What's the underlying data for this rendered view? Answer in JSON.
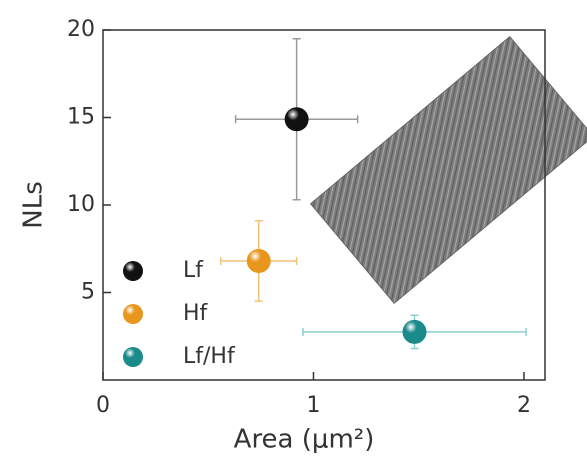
{
  "chart_data": {
    "type": "scatter",
    "x_label": "Area (μm²)",
    "y_label": "NLs",
    "xlim": [
      0,
      2.1
    ],
    "ylim": [
      0,
      20
    ],
    "xticks": [
      0,
      1,
      2
    ],
    "yticks": [
      5,
      10,
      15,
      20
    ],
    "legend": "lower left",
    "series": [
      {
        "name": "Lf",
        "color": "#111111",
        "bar_color": "#9a9a9a",
        "x": [
          0.92
        ],
        "y": [
          14.9
        ],
        "xerr": [
          0.29
        ],
        "yerr": [
          4.6
        ]
      },
      {
        "name": "Hf",
        "color": "#e8961e",
        "bar_color": "#f3c27a",
        "x": [
          0.74
        ],
        "y": [
          6.8
        ],
        "xerr": [
          0.18
        ],
        "yerr": [
          2.3
        ]
      },
      {
        "name": "Lf/Hf",
        "color": "#1a8a8a",
        "bar_color": "#8ccfcc",
        "x": [
          1.48
        ],
        "y": [
          2.75
        ],
        "xerr": [
          0.53
        ],
        "yerr": [
          0.95
        ]
      }
    ]
  }
}
